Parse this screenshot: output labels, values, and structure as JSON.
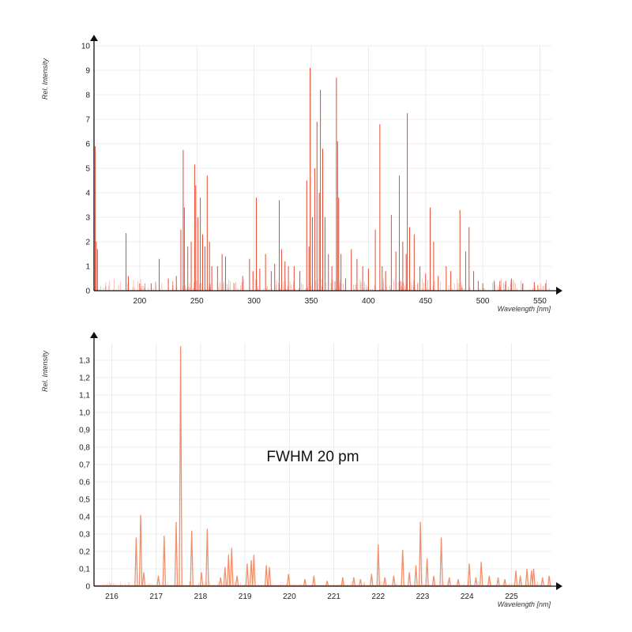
{
  "chart_data": [
    {
      "type": "line",
      "xlabel": "Wavelength [nm]",
      "ylabel": "Rel. Intensity",
      "xlim": [
        160,
        560
      ],
      "ylim": [
        0,
        10
      ],
      "x_ticks": [
        200,
        250,
        300,
        350,
        400,
        450,
        500,
        550
      ],
      "y_ticks": [
        0,
        1,
        2,
        3,
        4,
        5,
        6,
        7,
        8,
        9,
        10
      ],
      "grid": true,
      "line_color": "#e8482f",
      "peaks": [
        {
          "x": 161,
          "y": 5.9
        },
        {
          "x": 162,
          "y": 2.0
        },
        {
          "x": 163,
          "y": 1.7
        },
        {
          "x": 188,
          "y": 2.35
        },
        {
          "x": 190,
          "y": 0.6
        },
        {
          "x": 200,
          "y": 0.3
        },
        {
          "x": 210,
          "y": 0.3
        },
        {
          "x": 217,
          "y": 1.3
        },
        {
          "x": 225,
          "y": 0.5
        },
        {
          "x": 232,
          "y": 0.6
        },
        {
          "x": 236,
          "y": 2.5
        },
        {
          "x": 238,
          "y": 5.75
        },
        {
          "x": 239,
          "y": 3.4
        },
        {
          "x": 242,
          "y": 1.8
        },
        {
          "x": 245,
          "y": 2.0
        },
        {
          "x": 248,
          "y": 5.15
        },
        {
          "x": 249,
          "y": 4.3
        },
        {
          "x": 251,
          "y": 3.0
        },
        {
          "x": 253,
          "y": 3.8
        },
        {
          "x": 255,
          "y": 2.3
        },
        {
          "x": 257,
          "y": 1.8
        },
        {
          "x": 259,
          "y": 4.7
        },
        {
          "x": 261,
          "y": 2.0
        },
        {
          "x": 263,
          "y": 1.0
        },
        {
          "x": 268,
          "y": 1.0
        },
        {
          "x": 272,
          "y": 1.5
        },
        {
          "x": 275,
          "y": 1.4
        },
        {
          "x": 290,
          "y": 0.6
        },
        {
          "x": 296,
          "y": 1.3
        },
        {
          "x": 299,
          "y": 0.8
        },
        {
          "x": 302,
          "y": 3.8
        },
        {
          "x": 305,
          "y": 0.9
        },
        {
          "x": 310,
          "y": 1.5
        },
        {
          "x": 315,
          "y": 0.8
        },
        {
          "x": 318,
          "y": 1.1
        },
        {
          "x": 322,
          "y": 3.7
        },
        {
          "x": 324,
          "y": 1.7
        },
        {
          "x": 327,
          "y": 1.2
        },
        {
          "x": 330,
          "y": 1.0
        },
        {
          "x": 335,
          "y": 1.0
        },
        {
          "x": 340,
          "y": 0.8
        },
        {
          "x": 346,
          "y": 4.5
        },
        {
          "x": 348,
          "y": 1.8
        },
        {
          "x": 349,
          "y": 9.1
        },
        {
          "x": 351,
          "y": 3.0
        },
        {
          "x": 353,
          "y": 5.0
        },
        {
          "x": 355,
          "y": 6.9
        },
        {
          "x": 357,
          "y": 4.0
        },
        {
          "x": 358,
          "y": 8.2
        },
        {
          "x": 360,
          "y": 5.8
        },
        {
          "x": 362,
          "y": 3.0
        },
        {
          "x": 365,
          "y": 1.5
        },
        {
          "x": 368,
          "y": 1.0
        },
        {
          "x": 372,
          "y": 8.7
        },
        {
          "x": 373,
          "y": 6.1
        },
        {
          "x": 374,
          "y": 3.8
        },
        {
          "x": 376,
          "y": 1.5
        },
        {
          "x": 380,
          "y": 0.5
        },
        {
          "x": 385,
          "y": 1.7
        },
        {
          "x": 390,
          "y": 1.3
        },
        {
          "x": 395,
          "y": 1.0
        },
        {
          "x": 400,
          "y": 0.9
        },
        {
          "x": 406,
          "y": 2.5
        },
        {
          "x": 410,
          "y": 6.8
        },
        {
          "x": 412,
          "y": 1.0
        },
        {
          "x": 415,
          "y": 0.8
        },
        {
          "x": 420,
          "y": 3.1
        },
        {
          "x": 424,
          "y": 1.6
        },
        {
          "x": 427,
          "y": 4.7
        },
        {
          "x": 430,
          "y": 2.0
        },
        {
          "x": 433,
          "y": 1.5
        },
        {
          "x": 434,
          "y": 7.25
        },
        {
          "x": 436,
          "y": 2.6
        },
        {
          "x": 440,
          "y": 2.3
        },
        {
          "x": 445,
          "y": 1.0
        },
        {
          "x": 450,
          "y": 0.7
        },
        {
          "x": 454,
          "y": 3.4
        },
        {
          "x": 457,
          "y": 2.0
        },
        {
          "x": 461,
          "y": 0.6
        },
        {
          "x": 468,
          "y": 1.0
        },
        {
          "x": 472,
          "y": 0.8
        },
        {
          "x": 480,
          "y": 3.3
        },
        {
          "x": 485,
          "y": 1.6
        },
        {
          "x": 488,
          "y": 2.6
        },
        {
          "x": 492,
          "y": 0.8
        },
        {
          "x": 496,
          "y": 0.4
        },
        {
          "x": 500,
          "y": 0.3
        },
        {
          "x": 510,
          "y": 0.4
        },
        {
          "x": 515,
          "y": 0.4
        },
        {
          "x": 520,
          "y": 0.4
        },
        {
          "x": 525,
          "y": 0.5
        },
        {
          "x": 535,
          "y": 0.3
        },
        {
          "x": 545,
          "y": 0.35
        },
        {
          "x": 555,
          "y": 0.3
        }
      ]
    },
    {
      "type": "line",
      "xlabel": "Wavelength [nm]",
      "ylabel": "Rel. Intensity",
      "xlim": [
        215.6,
        225.9
      ],
      "ylim": [
        0,
        1.4
      ],
      "x_ticks": [
        216,
        217,
        218,
        219,
        220,
        221,
        222,
        223,
        224,
        225
      ],
      "y_ticks": [
        "0",
        "0,1",
        "0,2",
        "0,3",
        "0,4",
        "0,5",
        "0,6",
        "0,7",
        "0,8",
        "0,9",
        "1,0",
        "1,1",
        "1,2",
        "1,3"
      ],
      "grid": true,
      "line_color": "#f2906c",
      "annotation": "FWHM 20 pm",
      "peaks": [
        {
          "x": 216.55,
          "y": 0.28
        },
        {
          "x": 216.65,
          "y": 0.41
        },
        {
          "x": 216.72,
          "y": 0.08
        },
        {
          "x": 217.05,
          "y": 0.06
        },
        {
          "x": 217.18,
          "y": 0.29
        },
        {
          "x": 217.45,
          "y": 0.37
        },
        {
          "x": 217.55,
          "y": 1.38
        },
        {
          "x": 217.8,
          "y": 0.32
        },
        {
          "x": 218.02,
          "y": 0.08
        },
        {
          "x": 218.15,
          "y": 0.33
        },
        {
          "x": 218.45,
          "y": 0.05
        },
        {
          "x": 218.55,
          "y": 0.11
        },
        {
          "x": 218.63,
          "y": 0.18
        },
        {
          "x": 218.7,
          "y": 0.22
        },
        {
          "x": 218.82,
          "y": 0.06
        },
        {
          "x": 219.05,
          "y": 0.13
        },
        {
          "x": 219.14,
          "y": 0.15
        },
        {
          "x": 219.2,
          "y": 0.18
        },
        {
          "x": 219.48,
          "y": 0.12
        },
        {
          "x": 219.55,
          "y": 0.11
        },
        {
          "x": 219.98,
          "y": 0.07
        },
        {
          "x": 220.35,
          "y": 0.04
        },
        {
          "x": 220.55,
          "y": 0.06
        },
        {
          "x": 220.85,
          "y": 0.03
        },
        {
          "x": 221.2,
          "y": 0.05
        },
        {
          "x": 221.45,
          "y": 0.05
        },
        {
          "x": 221.6,
          "y": 0.04
        },
        {
          "x": 221.85,
          "y": 0.07
        },
        {
          "x": 222.0,
          "y": 0.24
        },
        {
          "x": 222.15,
          "y": 0.05
        },
        {
          "x": 222.35,
          "y": 0.06
        },
        {
          "x": 222.55,
          "y": 0.21
        },
        {
          "x": 222.7,
          "y": 0.08
        },
        {
          "x": 222.85,
          "y": 0.12
        },
        {
          "x": 222.95,
          "y": 0.37
        },
        {
          "x": 223.1,
          "y": 0.16
        },
        {
          "x": 223.25,
          "y": 0.06
        },
        {
          "x": 223.42,
          "y": 0.28
        },
        {
          "x": 223.6,
          "y": 0.05
        },
        {
          "x": 223.8,
          "y": 0.04
        },
        {
          "x": 224.05,
          "y": 0.13
        },
        {
          "x": 224.2,
          "y": 0.05
        },
        {
          "x": 224.32,
          "y": 0.14
        },
        {
          "x": 224.5,
          "y": 0.06
        },
        {
          "x": 224.7,
          "y": 0.05
        },
        {
          "x": 224.85,
          "y": 0.04
        },
        {
          "x": 225.1,
          "y": 0.09
        },
        {
          "x": 225.2,
          "y": 0.06
        },
        {
          "x": 225.35,
          "y": 0.1
        },
        {
          "x": 225.45,
          "y": 0.09
        },
        {
          "x": 225.5,
          "y": 0.1
        },
        {
          "x": 225.7,
          "y": 0.05
        },
        {
          "x": 225.85,
          "y": 0.06
        }
      ]
    }
  ]
}
